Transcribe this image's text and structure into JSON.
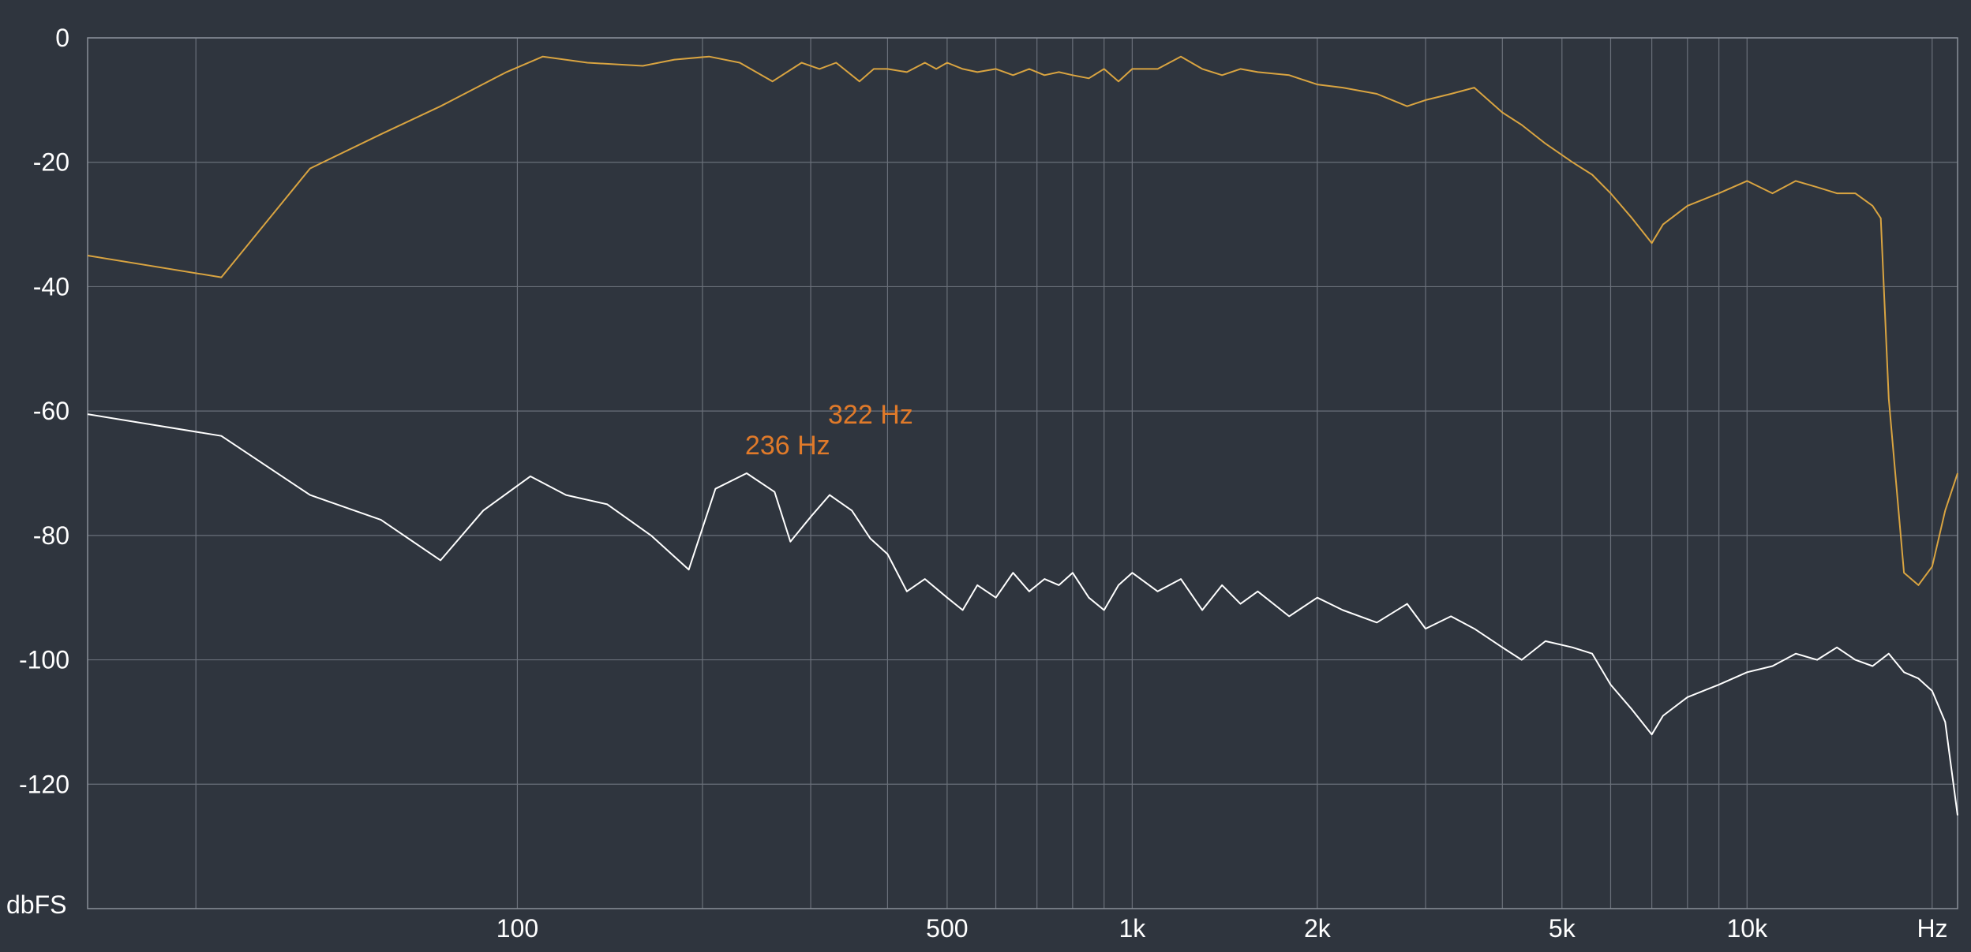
{
  "chart_data": {
    "type": "line",
    "x_scale": "log",
    "xlim": [
      20,
      22000
    ],
    "ylim": [
      -140,
      0
    ],
    "grid": true,
    "y_unit_label": "dbFS",
    "x_unit_label": "Hz",
    "x_tick_labels": [
      {
        "value": 100,
        "label": "100"
      },
      {
        "value": 500,
        "label": "500"
      },
      {
        "value": 1000,
        "label": "1k"
      },
      {
        "value": 2000,
        "label": "2k"
      },
      {
        "value": 5000,
        "label": "5k"
      },
      {
        "value": 10000,
        "label": "10k"
      }
    ],
    "x_grid": [
      30,
      100,
      200,
      300,
      400,
      500,
      600,
      700,
      800,
      900,
      1000,
      2000,
      3000,
      4000,
      5000,
      6000,
      7000,
      8000,
      9000,
      10000,
      20000
    ],
    "y_ticks": [
      0,
      -20,
      -40,
      -60,
      -80,
      -100,
      -120
    ],
    "y_tick_labels": [
      "0",
      "-20",
      "-40",
      "-60",
      "-80",
      "-100",
      "-120"
    ],
    "annotations": [
      {
        "text": "236 Hz",
        "x": 236,
        "y": -68
      },
      {
        "text": "322 Hz",
        "x": 322,
        "y": -63
      }
    ],
    "series": [
      {
        "color": "#d9a441",
        "x": [
          20,
          33,
          46,
          60,
          75,
          96,
          110,
          130,
          160,
          180,
          205,
          230,
          260,
          290,
          310,
          330,
          360,
          380,
          400,
          430,
          460,
          480,
          500,
          530,
          560,
          600,
          640,
          680,
          720,
          760,
          800,
          850,
          900,
          950,
          1000,
          1100,
          1200,
          1300,
          1400,
          1500,
          1600,
          1800,
          2000,
          2200,
          2500,
          2800,
          3000,
          3300,
          3600,
          4000,
          4300,
          4700,
          5200,
          5600,
          6000,
          6500,
          7000,
          7300,
          8000,
          9000,
          10000,
          11000,
          12000,
          13000,
          14000,
          15000,
          16000,
          16500,
          17000,
          18000,
          19000,
          20000,
          21000,
          22000
        ],
        "y": [
          -35,
          -38.5,
          -21,
          -15.5,
          -11,
          -5.5,
          -3,
          -4,
          -4.5,
          -3.5,
          -3,
          -4,
          -7,
          -4,
          -5,
          -4,
          -7,
          -5,
          -5,
          -5.5,
          -4,
          -5,
          -4,
          -5,
          -5.5,
          -5,
          -6,
          -5,
          -6,
          -5.5,
          -6,
          -6.5,
          -5,
          -7,
          -5,
          -5,
          -3,
          -5,
          -6,
          -5,
          -5.5,
          -6,
          -7.5,
          -8,
          -9,
          -11,
          -10,
          -9,
          -8,
          -12,
          -14,
          -17,
          -20,
          -22,
          -25,
          -29,
          -33,
          -30,
          -27,
          -25,
          -23,
          -25,
          -23,
          -24,
          -25,
          -25,
          -27,
          -29,
          -58,
          -86,
          -88,
          -85,
          -76,
          -70
        ]
      },
      {
        "color": "#ffffff",
        "x": [
          20,
          33,
          46,
          60,
          75,
          88,
          105,
          120,
          140,
          165,
          190,
          210,
          236,
          262,
          278,
          300,
          322,
          350,
          375,
          400,
          430,
          460,
          500,
          530,
          560,
          600,
          640,
          680,
          720,
          760,
          800,
          850,
          900,
          950,
          1000,
          1100,
          1200,
          1300,
          1400,
          1500,
          1600,
          1800,
          2000,
          2200,
          2500,
          2800,
          3000,
          3300,
          3600,
          4000,
          4300,
          4700,
          5200,
          5600,
          6000,
          6500,
          7000,
          7300,
          8000,
          9000,
          10000,
          11000,
          12000,
          13000,
          14000,
          15000,
          16000,
          17000,
          18000,
          19000,
          20000,
          21000,
          22000
        ],
        "y": [
          -60.5,
          -64,
          -73.5,
          -77.5,
          -84,
          -76,
          -70.5,
          -73.5,
          -75,
          -80,
          -85.5,
          -72.5,
          -70,
          -73,
          -81,
          -77,
          -73.5,
          -76,
          -80.5,
          -83,
          -89,
          -87,
          -90,
          -92,
          -88,
          -90,
          -86,
          -89,
          -87,
          -88,
          -86,
          -90,
          -92,
          -88,
          -86,
          -89,
          -87,
          -92,
          -88,
          -91,
          -89,
          -93,
          -90,
          -92,
          -94,
          -91,
          -95,
          -93,
          -95,
          -98,
          -100,
          -97,
          -98,
          -99,
          -104,
          -108,
          -112,
          -109,
          -106,
          -104,
          -102,
          -101,
          -99,
          -100,
          -98,
          -100,
          -101,
          -99,
          -102,
          -103,
          -105,
          -110,
          -125
        ]
      }
    ]
  }
}
